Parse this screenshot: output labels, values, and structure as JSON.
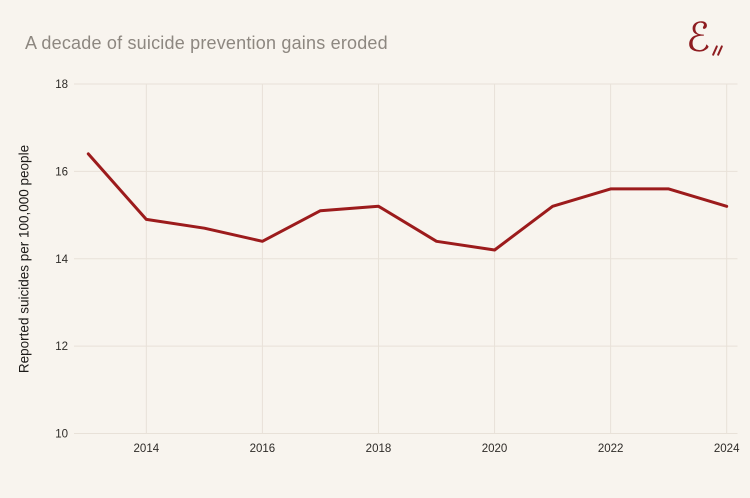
{
  "header": {
    "title": "A decade of suicide prevention gains eroded",
    "logo_glyph": "ℰ"
  },
  "colors": {
    "background": "#f8f4ee",
    "line": "#9c1b1c",
    "grid": "#e8e1d8",
    "title_text": "#8d8780",
    "tick_text": "#2e2b28",
    "axis_title_text": "#1c1a18",
    "logo": "#8e1c20"
  },
  "chart_data": {
    "type": "line",
    "title": "A decade of suicide prevention gains eroded",
    "xlabel": "",
    "ylabel": "Reported suicides per 100,000 people",
    "x": [
      2013,
      2014,
      2015,
      2016,
      2017,
      2018,
      2019,
      2020,
      2021,
      2022,
      2023,
      2024
    ],
    "series": [
      {
        "name": "Reported suicides per 100,000 people",
        "values": [
          16.4,
          14.9,
          14.7,
          14.4,
          15.1,
          15.2,
          14.4,
          14.2,
          15.2,
          15.6,
          15.6,
          15.2
        ]
      }
    ],
    "ylim": [
      10,
      18
    ],
    "yticks": [
      10,
      12,
      14,
      16,
      18
    ],
    "xticks": [
      2014,
      2016,
      2018,
      2020,
      2022,
      2024
    ],
    "grid": true,
    "legend": false
  }
}
